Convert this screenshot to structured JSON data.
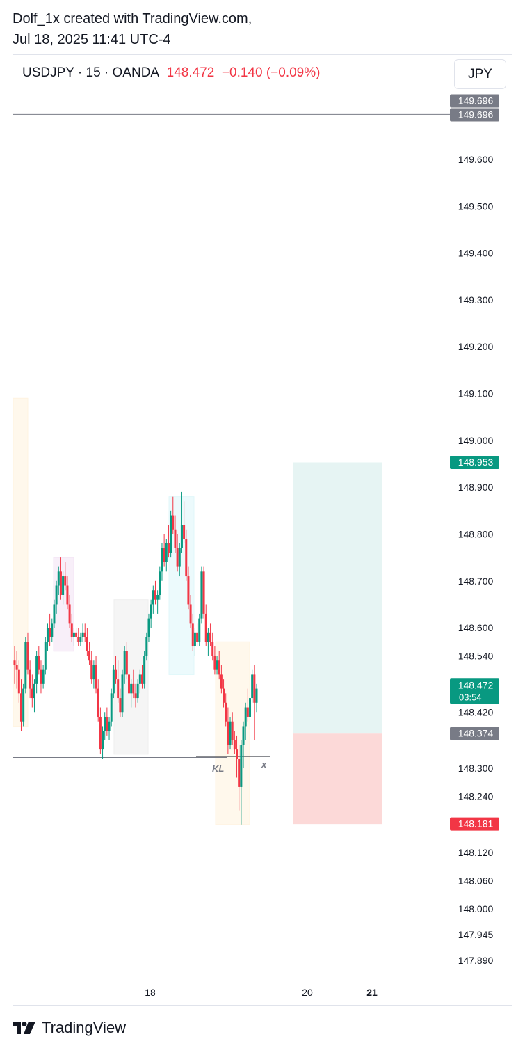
{
  "header": {
    "line1": "Dolf_1x created with TradingView.com,",
    "line2": "Jul 18, 2025 11:41 UTC-4"
  },
  "legend": {
    "symbol": "USDJPY · 15 · OANDA",
    "price": "148.472",
    "change": "−0.140 (−0.09%)"
  },
  "currency_button": "JPY",
  "footer": {
    "brand": "TradingView"
  },
  "colors": {
    "up": "#089981",
    "down": "#f23645",
    "gray": "#787b86"
  },
  "chart_data": {
    "type": "candlestick",
    "title": "USDJPY · 15 · OANDA",
    "y_range": [
      147.85,
      149.76
    ],
    "y_tick_labels": [
      "149.600",
      "149.500",
      "149.400",
      "149.300",
      "149.200",
      "149.100",
      "149.000",
      "148.900",
      "148.800",
      "148.700",
      "148.600",
      "148.540",
      "148.420",
      "148.300",
      "148.240",
      "148.120",
      "148.060",
      "148.000",
      "147.945",
      "147.890"
    ],
    "y_tick_values": [
      149.6,
      149.5,
      149.4,
      149.3,
      149.2,
      149.1,
      149.0,
      148.9,
      148.8,
      148.7,
      148.6,
      148.54,
      148.42,
      148.3,
      148.24,
      148.12,
      148.06,
      148.0,
      147.945,
      147.89
    ],
    "x_tick_labels": [
      {
        "label": "18",
        "bold": false
      },
      {
        "label": "20",
        "bold": false
      },
      {
        "label": "21",
        "bold": true
      }
    ],
    "price_labels": [
      {
        "text": "149.696",
        "value": 149.696,
        "style": "gray"
      },
      {
        "text": "149.696",
        "value": 149.696,
        "style": "gray"
      },
      {
        "text": "148.953",
        "value": 148.953,
        "style": "up"
      },
      {
        "text": "148.472",
        "value": 148.472,
        "style": "up",
        "countdown": "03:54"
      },
      {
        "text": "148.374",
        "value": 148.374,
        "style": "gray"
      },
      {
        "text": "148.181",
        "value": 148.181,
        "style": "down"
      }
    ],
    "horizontal_lines": [
      {
        "value": 149.696,
        "extent": "full"
      },
      {
        "value": 148.323,
        "extent": "left"
      }
    ],
    "annotations": [
      {
        "text": "KL",
        "value": 148.34
      },
      {
        "text": "x",
        "value": 148.34
      }
    ],
    "position_tool": {
      "target": 148.953,
      "entry": 148.374,
      "stop": 148.181
    },
    "zones": [
      {
        "top": 149.09,
        "bottom": 148.39,
        "color": "#fff3e0"
      },
      {
        "top": 148.75,
        "bottom": 148.55,
        "color": "#f3e5f5"
      },
      {
        "top": 148.66,
        "bottom": 148.33,
        "color": "#eeeeee"
      },
      {
        "top": 148.88,
        "bottom": 148.5,
        "color": "#e0f7fa"
      },
      {
        "top": 148.57,
        "bottom": 148.18,
        "color": "#fff3e0"
      }
    ],
    "candles": [
      [
        148.53,
        148.56,
        148.48,
        148.52
      ],
      [
        148.52,
        148.55,
        148.47,
        148.51
      ],
      [
        148.51,
        148.53,
        148.44,
        148.46
      ],
      [
        148.46,
        148.49,
        148.38,
        148.4
      ],
      [
        148.4,
        148.48,
        148.39,
        148.47
      ],
      [
        148.47,
        148.58,
        148.46,
        148.57
      ],
      [
        148.57,
        148.59,
        148.5,
        148.51
      ],
      [
        148.51,
        148.53,
        148.45,
        148.47
      ],
      [
        148.47,
        148.5,
        148.43,
        148.45
      ],
      [
        148.45,
        148.49,
        148.42,
        148.48
      ],
      [
        148.48,
        148.55,
        148.46,
        148.54
      ],
      [
        148.54,
        148.56,
        148.5,
        148.51
      ],
      [
        148.51,
        148.53,
        148.46,
        148.48
      ],
      [
        148.48,
        148.52,
        148.47,
        148.51
      ],
      [
        148.51,
        148.58,
        148.5,
        148.57
      ],
      [
        148.57,
        148.61,
        148.55,
        148.6
      ],
      [
        148.6,
        148.63,
        148.56,
        148.58
      ],
      [
        148.58,
        148.62,
        148.57,
        148.61
      ],
      [
        148.61,
        148.66,
        148.6,
        148.65
      ],
      [
        148.65,
        148.7,
        148.63,
        148.69
      ],
      [
        148.69,
        148.73,
        148.67,
        148.72
      ],
      [
        148.72,
        148.75,
        148.66,
        148.67
      ],
      [
        148.67,
        148.72,
        148.65,
        148.71
      ],
      [
        148.71,
        148.74,
        148.68,
        148.69
      ],
      [
        148.69,
        148.71,
        148.64,
        148.65
      ],
      [
        148.65,
        148.67,
        148.6,
        148.61
      ],
      [
        148.61,
        148.63,
        148.57,
        148.58
      ],
      [
        148.58,
        148.6,
        148.56,
        148.59
      ],
      [
        148.59,
        148.6,
        148.57,
        148.58
      ],
      [
        148.58,
        148.6,
        148.56,
        148.57
      ],
      [
        148.57,
        148.59,
        148.56,
        148.58
      ],
      [
        148.58,
        148.61,
        148.57,
        148.59
      ],
      [
        148.59,
        148.61,
        148.57,
        148.58
      ],
      [
        148.58,
        148.6,
        148.54,
        148.55
      ],
      [
        148.55,
        148.57,
        148.52,
        148.53
      ],
      [
        148.53,
        148.55,
        148.48,
        148.49
      ],
      [
        148.49,
        148.53,
        148.47,
        148.52
      ],
      [
        148.52,
        148.54,
        148.46,
        148.47
      ],
      [
        148.47,
        148.49,
        148.4,
        148.41
      ],
      [
        148.41,
        148.43,
        148.33,
        148.34
      ],
      [
        148.34,
        148.39,
        148.32,
        148.38
      ],
      [
        148.38,
        148.42,
        148.36,
        148.41
      ],
      [
        148.41,
        148.43,
        148.37,
        148.38
      ],
      [
        148.38,
        148.41,
        148.36,
        148.4
      ],
      [
        148.4,
        148.47,
        148.39,
        148.46
      ],
      [
        148.46,
        148.52,
        148.45,
        148.51
      ],
      [
        148.51,
        148.54,
        148.48,
        148.49
      ],
      [
        148.49,
        148.53,
        148.44,
        148.45
      ],
      [
        148.45,
        148.47,
        148.41,
        148.42
      ],
      [
        148.42,
        148.51,
        148.41,
        148.5
      ],
      [
        148.5,
        148.56,
        148.48,
        148.55
      ],
      [
        148.55,
        148.57,
        148.49,
        148.5
      ],
      [
        148.5,
        148.53,
        148.45,
        148.46
      ],
      [
        148.46,
        148.49,
        148.43,
        148.48
      ],
      [
        148.48,
        148.51,
        148.45,
        148.46
      ],
      [
        148.46,
        148.48,
        148.43,
        148.45
      ],
      [
        148.45,
        148.49,
        148.44,
        148.48
      ],
      [
        148.48,
        148.51,
        148.46,
        148.5
      ],
      [
        148.5,
        148.52,
        148.47,
        148.48
      ],
      [
        148.48,
        148.55,
        148.47,
        148.54
      ],
      [
        148.54,
        148.59,
        148.53,
        148.58
      ],
      [
        148.58,
        148.63,
        148.57,
        148.62
      ],
      [
        148.62,
        148.66,
        148.6,
        148.65
      ],
      [
        148.65,
        148.69,
        148.63,
        148.68
      ],
      [
        148.68,
        148.7,
        148.65,
        148.66
      ],
      [
        148.66,
        148.68,
        148.63,
        148.67
      ],
      [
        148.67,
        148.73,
        148.66,
        148.72
      ],
      [
        148.72,
        148.78,
        148.7,
        148.77
      ],
      [
        148.77,
        148.8,
        148.73,
        148.74
      ],
      [
        148.74,
        148.79,
        148.72,
        148.78
      ],
      [
        148.78,
        148.82,
        148.75,
        148.76
      ],
      [
        148.76,
        148.85,
        148.75,
        148.84
      ],
      [
        148.84,
        148.88,
        148.8,
        148.81
      ],
      [
        148.81,
        148.84,
        148.76,
        148.77
      ],
      [
        148.77,
        148.8,
        148.72,
        148.73
      ],
      [
        148.73,
        148.78,
        148.71,
        148.77
      ],
      [
        148.77,
        148.89,
        148.76,
        148.82
      ],
      [
        148.82,
        148.87,
        148.78,
        148.79
      ],
      [
        148.79,
        148.81,
        148.7,
        148.71
      ],
      [
        148.71,
        148.73,
        148.64,
        148.65
      ],
      [
        148.65,
        148.67,
        148.6,
        148.61
      ],
      [
        148.61,
        148.63,
        148.55,
        148.56
      ],
      [
        148.56,
        148.6,
        148.54,
        148.59
      ],
      [
        148.59,
        148.61,
        148.56,
        148.57
      ],
      [
        148.57,
        148.63,
        148.56,
        148.62
      ],
      [
        148.62,
        148.73,
        148.61,
        148.72
      ],
      [
        148.72,
        148.73,
        148.62,
        148.63
      ],
      [
        148.63,
        148.65,
        148.56,
        148.57
      ],
      [
        148.57,
        148.6,
        148.54,
        148.59
      ],
      [
        148.59,
        148.61,
        148.56,
        148.57
      ],
      [
        148.57,
        148.59,
        148.53,
        148.54
      ],
      [
        148.54,
        148.56,
        148.5,
        148.51
      ],
      [
        148.51,
        148.54,
        148.5,
        148.53
      ],
      [
        148.53,
        148.55,
        148.49,
        148.5
      ],
      [
        148.5,
        148.52,
        148.46,
        148.47
      ],
      [
        148.47,
        148.49,
        148.43,
        148.44
      ],
      [
        148.44,
        148.46,
        148.39,
        148.4
      ],
      [
        148.4,
        148.43,
        148.33,
        148.35
      ],
      [
        148.35,
        148.41,
        148.34,
        148.4
      ],
      [
        148.4,
        148.42,
        148.35,
        148.36
      ],
      [
        148.36,
        148.38,
        148.33,
        148.34
      ],
      [
        148.34,
        148.37,
        148.28,
        148.32
      ],
      [
        148.32,
        148.35,
        148.21,
        148.26
      ],
      [
        148.26,
        148.36,
        148.18,
        148.35
      ],
      [
        148.35,
        148.4,
        148.3,
        148.39
      ],
      [
        148.39,
        148.44,
        148.36,
        148.43
      ],
      [
        148.43,
        148.47,
        148.4,
        148.41
      ],
      [
        148.41,
        148.46,
        148.39,
        148.45
      ],
      [
        148.45,
        148.51,
        148.44,
        148.5
      ],
      [
        148.5,
        148.52,
        148.36,
        148.44
      ],
      [
        148.44,
        148.48,
        148.42,
        148.47
      ]
    ]
  }
}
